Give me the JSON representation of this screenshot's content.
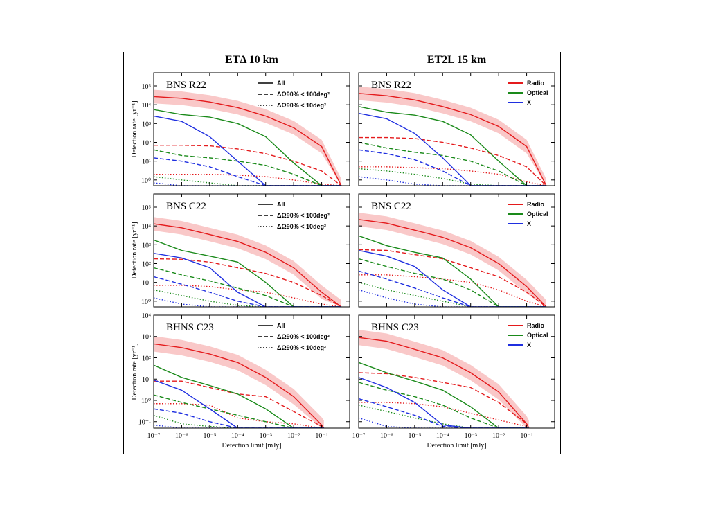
{
  "figure": {
    "columns": [
      {
        "title": "ETΔ 10 km"
      },
      {
        "title": "ET2L 15 km"
      }
    ],
    "rows": [
      {
        "label": "BNS R22"
      },
      {
        "label": "BNS C22"
      },
      {
        "label": "BHNS C23"
      }
    ],
    "ylabel": "Detection rate [yr⁻¹]",
    "xlabel": "Detection limit  [mJy]",
    "legend_linestyle": [
      "All",
      "ΔΩ90% < 100deg²",
      "ΔΩ90% < 10deg²"
    ],
    "legend_band": [
      "Radio",
      "Optical",
      "X"
    ],
    "colors": {
      "Radio": "#e41a1c",
      "Optical": "#1a8a1a",
      "X": "#1f2fe0",
      "band": "#f9c8c8"
    }
  },
  "chart_data": [
    {
      "type": "line",
      "title": "ETΔ 10 km — BNS R22",
      "xlabel": "Detection limit [mJy]",
      "ylabel": "Detection rate [yr^-1]",
      "xscale": "log",
      "yscale": "log",
      "xlim": [
        1e-07,
        1
      ],
      "ylim": [
        0.5,
        500000
      ],
      "x": [
        1e-07,
        1e-06,
        1e-05,
        0.0001,
        0.001,
        0.01,
        0.1,
        0.5
      ],
      "series": [
        {
          "name": "Radio All",
          "values": [
            27000,
            22000,
            14000,
            7000,
            2500,
            600,
            60,
            0.5
          ]
        },
        {
          "name": "Radio ΔΩ<100",
          "values": [
            70,
            70,
            65,
            45,
            25,
            10,
            3,
            0.5
          ]
        },
        {
          "name": "Radio ΔΩ<10",
          "values": [
            2,
            2,
            2,
            1.8,
            1.5,
            1,
            0.6,
            0.5
          ]
        },
        {
          "name": "Optical All",
          "values": [
            5500,
            3000,
            2200,
            1000,
            200,
            8,
            0.5,
            0.5
          ]
        },
        {
          "name": "Optical ΔΩ<100",
          "values": [
            40,
            20,
            15,
            10,
            6,
            2,
            0.5,
            0.5
          ]
        },
        {
          "name": "Optical ΔΩ<10",
          "values": [
            1.5,
            1,
            0.7,
            0.5,
            0.5,
            0.5,
            0.5,
            0.5
          ]
        },
        {
          "name": "X All",
          "values": [
            2500,
            1300,
            200,
            10,
            0.5,
            0.5,
            0.5,
            0.5
          ]
        },
        {
          "name": "X ΔΩ<100",
          "values": [
            15,
            10,
            5,
            1.5,
            0.5,
            0.5,
            0.5,
            0.5
          ]
        },
        {
          "name": "X ΔΩ<10",
          "values": [
            0.7,
            0.5,
            0.5,
            0.5,
            0.5,
            0.5,
            0.5,
            0.5
          ]
        }
      ]
    },
    {
      "type": "line",
      "title": "ET2L 15 km — BNS R22",
      "xscale": "log",
      "yscale": "log",
      "xlim": [
        1e-07,
        1
      ],
      "ylim": [
        0.5,
        500000
      ],
      "x": [
        1e-07,
        1e-06,
        1e-05,
        0.0001,
        0.001,
        0.01,
        0.1,
        0.5
      ],
      "series": [
        {
          "name": "Radio All",
          "values": [
            40000,
            30000,
            18000,
            8000,
            3000,
            700,
            60,
            0.5
          ]
        },
        {
          "name": "Radio ΔΩ<100",
          "values": [
            180,
            180,
            160,
            100,
            50,
            20,
            5,
            0.5
          ]
        },
        {
          "name": "Radio ΔΩ<10",
          "values": [
            5,
            5,
            4.5,
            4,
            3,
            2,
            0.8,
            0.5
          ]
        },
        {
          "name": "Optical All",
          "values": [
            8000,
            4000,
            2800,
            1300,
            250,
            10,
            0.5,
            0.5
          ]
        },
        {
          "name": "Optical ΔΩ<100",
          "values": [
            100,
            50,
            30,
            20,
            10,
            3,
            0.5,
            0.5
          ]
        },
        {
          "name": "Optical ΔΩ<10",
          "values": [
            4,
            3,
            2,
            1.2,
            0.6,
            0.5,
            0.5,
            0.5
          ]
        },
        {
          "name": "X All",
          "values": [
            3500,
            1800,
            300,
            15,
            0.5,
            0.5,
            0.5,
            0.5
          ]
        },
        {
          "name": "X ΔΩ<100",
          "values": [
            40,
            25,
            12,
            3,
            0.5,
            0.5,
            0.5,
            0.5
          ]
        },
        {
          "name": "X ΔΩ<10",
          "values": [
            1.5,
            1,
            0.6,
            0.5,
            0.5,
            0.5,
            0.5,
            0.5
          ]
        }
      ]
    },
    {
      "type": "line",
      "title": "ETΔ 10 km — BNS C22",
      "xscale": "log",
      "yscale": "log",
      "xlim": [
        1e-07,
        1
      ],
      "ylim": [
        0.5,
        500000
      ],
      "x": [
        1e-07,
        1e-06,
        1e-05,
        0.0001,
        0.001,
        0.01,
        0.1,
        0.5
      ],
      "series": [
        {
          "name": "Radio All",
          "values": [
            13000,
            8000,
            3500,
            1500,
            400,
            60,
            3,
            0.5
          ]
        },
        {
          "name": "Radio ΔΩ<100",
          "values": [
            180,
            170,
            120,
            60,
            30,
            10,
            2,
            0.5
          ]
        },
        {
          "name": "Radio ΔΩ<10",
          "values": [
            7,
            7,
            6,
            4,
            3,
            1.5,
            0.7,
            0.5
          ]
        },
        {
          "name": "Optical All",
          "values": [
            1800,
            500,
            250,
            120,
            10,
            0.5,
            0.5,
            0.5
          ]
        },
        {
          "name": "Optical ΔΩ<100",
          "values": [
            60,
            25,
            12,
            5,
            2,
            0.5,
            0.5,
            0.5
          ]
        },
        {
          "name": "Optical ΔΩ<10",
          "values": [
            4,
            2,
            1,
            0.6,
            0.5,
            0.5,
            0.5,
            0.5
          ]
        },
        {
          "name": "X All",
          "values": [
            350,
            200,
            60,
            3,
            0.5,
            0.5,
            0.5,
            0.5
          ]
        },
        {
          "name": "X ΔΩ<100",
          "values": [
            20,
            8,
            3,
            1,
            0.5,
            0.5,
            0.5,
            0.5
          ]
        },
        {
          "name": "X ΔΩ<10",
          "values": [
            1.5,
            0.7,
            0.5,
            0.5,
            0.5,
            0.5,
            0.5,
            0.5
          ]
        }
      ]
    },
    {
      "type": "line",
      "title": "ET2L 15 km — BNS C22",
      "xscale": "log",
      "yscale": "log",
      "xlim": [
        1e-07,
        1
      ],
      "ylim": [
        0.5,
        500000
      ],
      "x": [
        1e-07,
        1e-06,
        1e-05,
        0.0001,
        0.001,
        0.01,
        0.1,
        0.5
      ],
      "series": [
        {
          "name": "Radio All",
          "values": [
            22000,
            14000,
            6000,
            2500,
            700,
            100,
            6,
            0.5
          ]
        },
        {
          "name": "Radio ΔΩ<100",
          "values": [
            550,
            500,
            300,
            180,
            60,
            20,
            3,
            0.5
          ]
        },
        {
          "name": "Radio ΔΩ<10",
          "values": [
            25,
            25,
            20,
            15,
            10,
            4,
            1,
            0.5
          ]
        },
        {
          "name": "Optical All",
          "values": [
            3000,
            900,
            400,
            200,
            15,
            0.5,
            0.5,
            0.5
          ]
        },
        {
          "name": "Optical ΔΩ<100",
          "values": [
            180,
            70,
            30,
            15,
            4,
            0.5,
            0.5,
            0.5
          ]
        },
        {
          "name": "Optical ΔΩ<10",
          "values": [
            10,
            4,
            2,
            1,
            0.5,
            0.5,
            0.5,
            0.5
          ]
        },
        {
          "name": "X All",
          "values": [
            500,
            250,
            70,
            4,
            0.5,
            0.5,
            0.5,
            0.5
          ]
        },
        {
          "name": "X ΔΩ<100",
          "values": [
            40,
            15,
            5,
            1.5,
            0.5,
            0.5,
            0.5,
            0.5
          ]
        },
        {
          "name": "X ΔΩ<10",
          "values": [
            4,
            1.5,
            0.7,
            0.5,
            0.5,
            0.5,
            0.5,
            0.5
          ]
        }
      ]
    },
    {
      "type": "line",
      "title": "ETΔ 10 km — BHNS C23",
      "xscale": "log",
      "yscale": "log",
      "xlim": [
        1e-07,
        1
      ],
      "ylim": [
        0.05,
        10000
      ],
      "x": [
        1e-07,
        1e-06,
        1e-05,
        0.0001,
        0.001,
        0.01,
        0.1,
        0.12
      ],
      "series": [
        {
          "name": "Radio All",
          "values": [
            450,
            300,
            150,
            60,
            12,
            1.5,
            0.07,
            0.05
          ]
        },
        {
          "name": "Radio ΔΩ<100",
          "values": [
            8,
            8,
            4,
            2,
            1.5,
            0.3,
            0.06,
            0.05
          ]
        },
        {
          "name": "Radio ΔΩ<10",
          "values": [
            0.7,
            0.7,
            0.6,
            0.15,
            0.1,
            0.08,
            0.05,
            0.05
          ]
        },
        {
          "name": "Optical All",
          "values": [
            45,
            12,
            5,
            2,
            0.4,
            0.05,
            0.05,
            0.05
          ]
        },
        {
          "name": "Optical ΔΩ<100",
          "values": [
            1.8,
            0.8,
            0.4,
            0.2,
            0.1,
            0.05,
            0.05,
            0.05
          ]
        },
        {
          "name": "Optical ΔΩ<10",
          "values": [
            0.2,
            0.08,
            0.06,
            0.05,
            0.05,
            0.05,
            0.05,
            0.05
          ]
        },
        {
          "name": "X All",
          "values": [
            9,
            3,
            0.4,
            0.05,
            0.05,
            0.05,
            0.05,
            0.05
          ]
        },
        {
          "name": "X ΔΩ<100",
          "values": [
            0.4,
            0.25,
            0.1,
            0.05,
            0.05,
            0.05,
            0.05,
            0.05
          ]
        },
        {
          "name": "X ΔΩ<10",
          "values": [
            0.07,
            0.05,
            0.05,
            0.05,
            0.05,
            0.05,
            0.05,
            0.05
          ]
        }
      ]
    },
    {
      "type": "line",
      "title": "ET2L 15 km — BHNS C23",
      "xscale": "log",
      "yscale": "log",
      "xlim": [
        1e-07,
        1
      ],
      "ylim": [
        0.05,
        10000
      ],
      "x": [
        1e-07,
        1e-06,
        1e-05,
        0.0001,
        0.001,
        0.01,
        0.1,
        0.12
      ],
      "series": [
        {
          "name": "Radio All",
          "values": [
            900,
            600,
            250,
            100,
            20,
            2.5,
            0.08,
            0.05
          ]
        },
        {
          "name": "Radio ΔΩ<100",
          "values": [
            20,
            18,
            12,
            7,
            4,
            0.8,
            0.08,
            0.05
          ]
        },
        {
          "name": "Radio ΔΩ<10",
          "values": [
            0.8,
            0.8,
            0.7,
            0.5,
            0.25,
            0.12,
            0.06,
            0.05
          ]
        },
        {
          "name": "Optical All",
          "values": [
            60,
            20,
            8,
            3,
            0.5,
            0.05,
            0.05,
            0.05
          ]
        },
        {
          "name": "Optical ΔΩ<100",
          "values": [
            7,
            3,
            1.5,
            0.6,
            0.15,
            0.05,
            0.05,
            0.05
          ]
        },
        {
          "name": "Optical ΔΩ<10",
          "values": [
            0.6,
            0.3,
            0.15,
            0.08,
            0.05,
            0.05,
            0.05,
            0.05
          ]
        },
        {
          "name": "X All",
          "values": [
            12,
            4,
            0.8,
            0.07,
            0.05,
            0.05,
            0.05,
            0.05
          ]
        },
        {
          "name": "X ΔΩ<100",
          "values": [
            1.2,
            0.5,
            0.2,
            0.06,
            0.05,
            0.05,
            0.05,
            0.05
          ]
        },
        {
          "name": "X ΔΩ<10",
          "values": [
            0.15,
            0.06,
            0.05,
            0.05,
            0.05,
            0.05,
            0.05,
            0.05
          ]
        }
      ]
    }
  ]
}
